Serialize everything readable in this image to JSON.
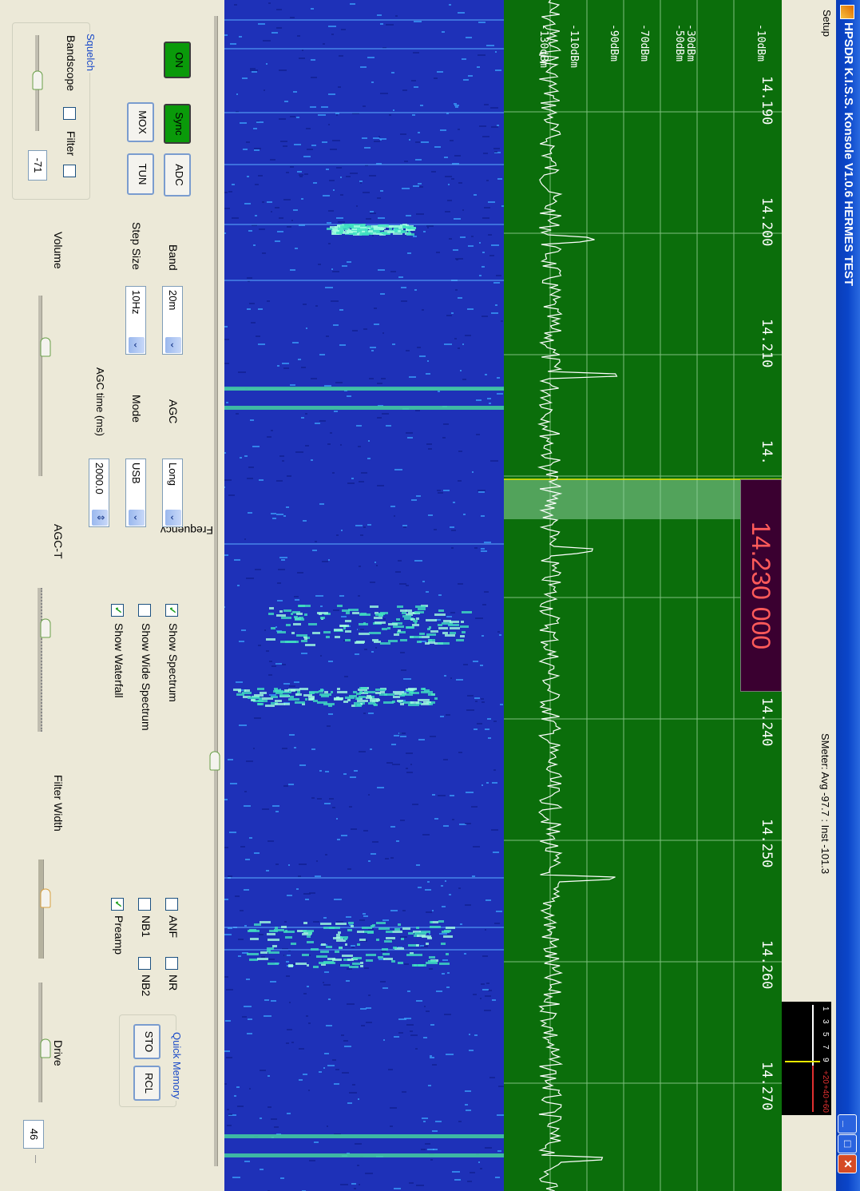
{
  "window": {
    "title": "HPSDR K.I.S.S. Konsole  V1.0.6  HERMES TEST",
    "minimize_glyph": "_",
    "maximize_glyph": "□",
    "close_glyph": "✕"
  },
  "menu": {
    "setup": "Setup"
  },
  "smeter": {
    "text": "SMeter: Avg -97.7 : Inst -101.3",
    "scale_labels": [
      "1",
      "3",
      "5",
      "7",
      "9"
    ],
    "scale_labels_red": [
      "+20",
      "+40",
      "+60"
    ]
  },
  "spectrum": {
    "db_labels": [
      "-10dBm",
      "-30dBm",
      "-50dBm",
      "-70dBm",
      "-90dBm",
      "-110dBm",
      "-130dBm"
    ],
    "freq_labels": [
      "14.190",
      "14.200",
      "14.210",
      "14.",
      "14.240",
      "14.250",
      "14.260",
      "14.270"
    ],
    "frequency_display": "14.230 000",
    "colors": {
      "background": "#0b6e0b",
      "grid": "#7fbf7f",
      "trace": "#ffffff",
      "tune_line": "#e8e800"
    }
  },
  "controls": {
    "on_button": "ON",
    "sync_button": "Sync",
    "adc_button": "ADC",
    "mox_button": "MOX",
    "tun_button": "TUN",
    "band_label": "Band",
    "band_value": "20m",
    "step_label": "Step Size",
    "step_value": "10Hz",
    "agc_label": "AGC",
    "agc_value": "Long",
    "mode_label": "Mode",
    "mode_value": "USB",
    "agc_time_label": "AGC time (ms)",
    "agc_time_value": "2000.0",
    "frequency_label": "Frequency",
    "show_spectrum": "Show Spectrum",
    "show_wide_spectrum": "Show Wide Spectrum",
    "show_waterfall": "Show Waterfall",
    "anf": "ANF",
    "nr": "NR",
    "nb1": "NB1",
    "nb2": "NB2",
    "preamp": "Preamp",
    "quick_memory": "Quick Memory",
    "sto": "STO",
    "rcl": "RCL",
    "squelch": "Squelch",
    "bandscope": "Bandscope",
    "filter": "Filter",
    "squelch_value": "-71",
    "volume": "Volume",
    "agc_t": "AGC-T",
    "filter_width": "Filter Width",
    "drive": "Drive",
    "drive_value": "46",
    "checks": {
      "show_spectrum": true,
      "show_wide_spectrum": false,
      "show_waterfall": true,
      "anf": false,
      "nr": false,
      "nb1": false,
      "nb2": false,
      "preamp": true,
      "bandscope": false,
      "filter": false
    },
    "check_glyph": "✓",
    "arrow_down": "⌄",
    "spin": "⇕"
  }
}
